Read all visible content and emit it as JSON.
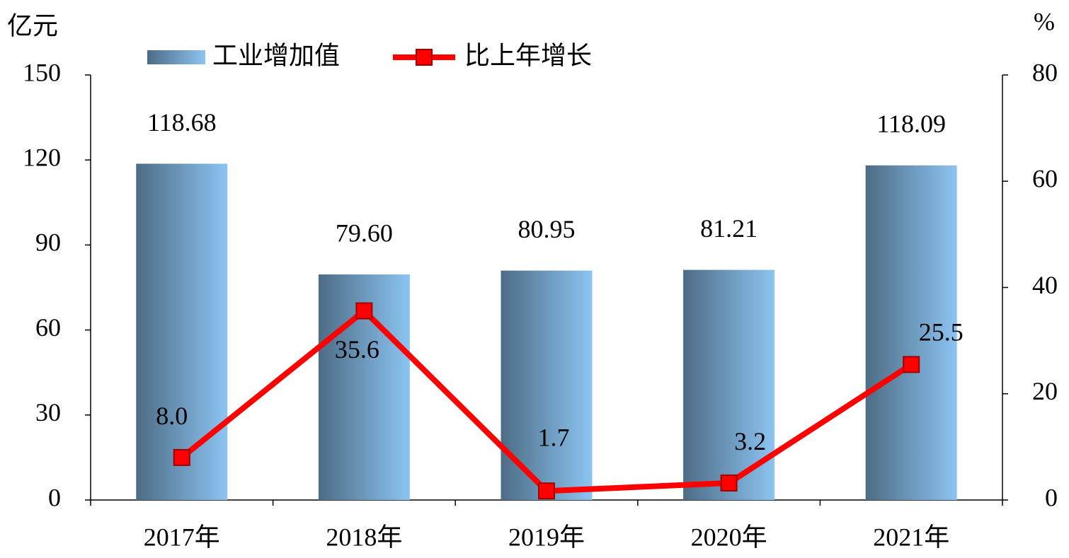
{
  "chart_data": {
    "type": "bar_line",
    "y_label": "亿元",
    "y2_label": "%",
    "categories": [
      "2017年",
      "2018年",
      "2019年",
      "2020年",
      "2021年"
    ],
    "series": [
      {
        "name": "工业增加值",
        "type": "bar",
        "color": "#8cc4f2",
        "values": [
          118.68,
          79.6,
          80.95,
          81.21,
          118.09
        ],
        "value_labels": [
          "118.68",
          "79.60",
          "80.95",
          "81.21",
          "118.09"
        ]
      },
      {
        "name": "比上年增长",
        "type": "line",
        "axis": "y2",
        "color": "#ff0000",
        "values": [
          8.0,
          35.6,
          1.7,
          3.2,
          25.5
        ],
        "value_labels": [
          "8.0",
          "35.6",
          "1.7",
          "3.2",
          "25.5"
        ]
      }
    ],
    "ylim": [
      0,
      150
    ],
    "yticks": [
      0,
      30,
      60,
      90,
      120,
      150
    ],
    "y2lim": [
      0,
      80
    ],
    "y2ticks": [
      0,
      20,
      40,
      60,
      80
    ]
  }
}
